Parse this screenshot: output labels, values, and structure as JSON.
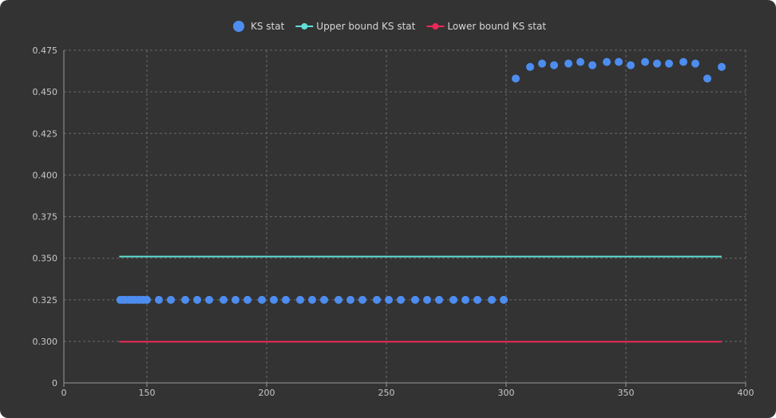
{
  "chart_data": {
    "type": "scatter",
    "title": "",
    "xlabel": "",
    "ylabel": "",
    "legend_position": "top-center",
    "grid": true,
    "x_ticks": [
      0,
      150,
      200,
      250,
      300,
      350,
      400
    ],
    "y_ticks": [
      0,
      0.3,
      0.325,
      0.35,
      0.375,
      0.4,
      0.425,
      0.45,
      0.475
    ],
    "x_tick_labels": [
      "0",
      "150",
      "200",
      "250",
      "300",
      "350",
      "400"
    ],
    "y_tick_labels": [
      "0",
      "0.300",
      "0.325",
      "0.350",
      "0.375",
      "0.400",
      "0.425",
      "0.450",
      "0.475"
    ],
    "series": [
      {
        "name": "KS stat",
        "kind": "markers",
        "color": "#4d8df0",
        "x": [
          102,
          107,
          112,
          118,
          123,
          128,
          134,
          139,
          144,
          150,
          155,
          160,
          166,
          171,
          176,
          182,
          187,
          192,
          198,
          203,
          208,
          214,
          219,
          224,
          230,
          235,
          240,
          246,
          251,
          256,
          262,
          267,
          272,
          278,
          283,
          288,
          294,
          299,
          304,
          310,
          315,
          320,
          326,
          331,
          336,
          342,
          347,
          352,
          358,
          363,
          368,
          374,
          379,
          384,
          390
        ],
        "y": [
          0.325,
          0.325,
          0.325,
          0.325,
          0.325,
          0.325,
          0.325,
          0.325,
          0.325,
          0.325,
          0.325,
          0.325,
          0.325,
          0.325,
          0.325,
          0.325,
          0.325,
          0.325,
          0.325,
          0.325,
          0.325,
          0.325,
          0.325,
          0.325,
          0.325,
          0.325,
          0.325,
          0.325,
          0.325,
          0.325,
          0.325,
          0.325,
          0.325,
          0.325,
          0.325,
          0.325,
          0.325,
          0.325,
          0.458,
          0.465,
          0.467,
          0.466,
          0.467,
          0.468,
          0.466,
          0.468,
          0.468,
          0.466,
          0.468,
          0.467,
          0.467,
          0.468,
          0.467,
          0.458,
          0.465
        ]
      },
      {
        "name": "Upper bound KS stat",
        "kind": "line",
        "color": "#5fe0d6",
        "x": [
          100,
          390
        ],
        "y": [
          0.351,
          0.351
        ]
      },
      {
        "name": "Lower bound KS stat",
        "kind": "line",
        "color": "#f0285a",
        "x": [
          100,
          390
        ],
        "y": [
          0.298,
          0.298
        ]
      }
    ]
  }
}
